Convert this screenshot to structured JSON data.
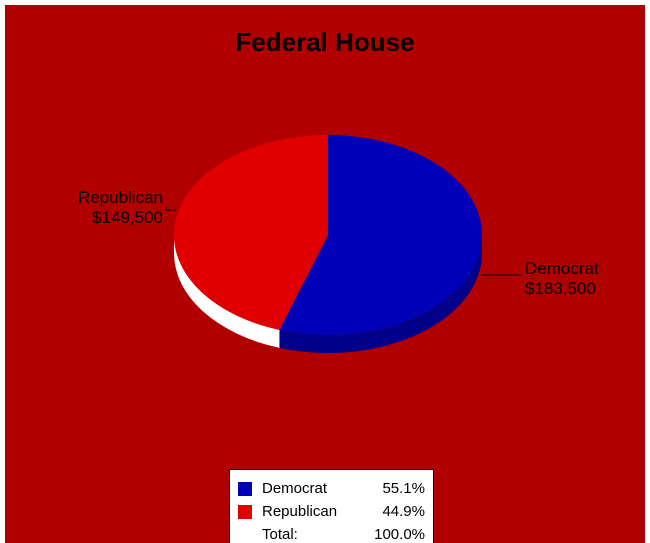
{
  "chart_data": {
    "type": "pie",
    "title": "Federal House",
    "slices": [
      {
        "name": "Democrat",
        "value": 183500,
        "value_label": "$183,500",
        "percent_label": "55.1%",
        "color": "#0000b8",
        "side_color": "#00008a"
      },
      {
        "name": "Republican",
        "value": 149500,
        "value_label": "$149,500",
        "percent_label": "44.9%",
        "color": "#e00000",
        "side_color": "#ffffff"
      }
    ],
    "total_label": "Total:",
    "total_percent": "100.0%",
    "legend_position": "bottom-center",
    "background_color": "#b10000"
  }
}
